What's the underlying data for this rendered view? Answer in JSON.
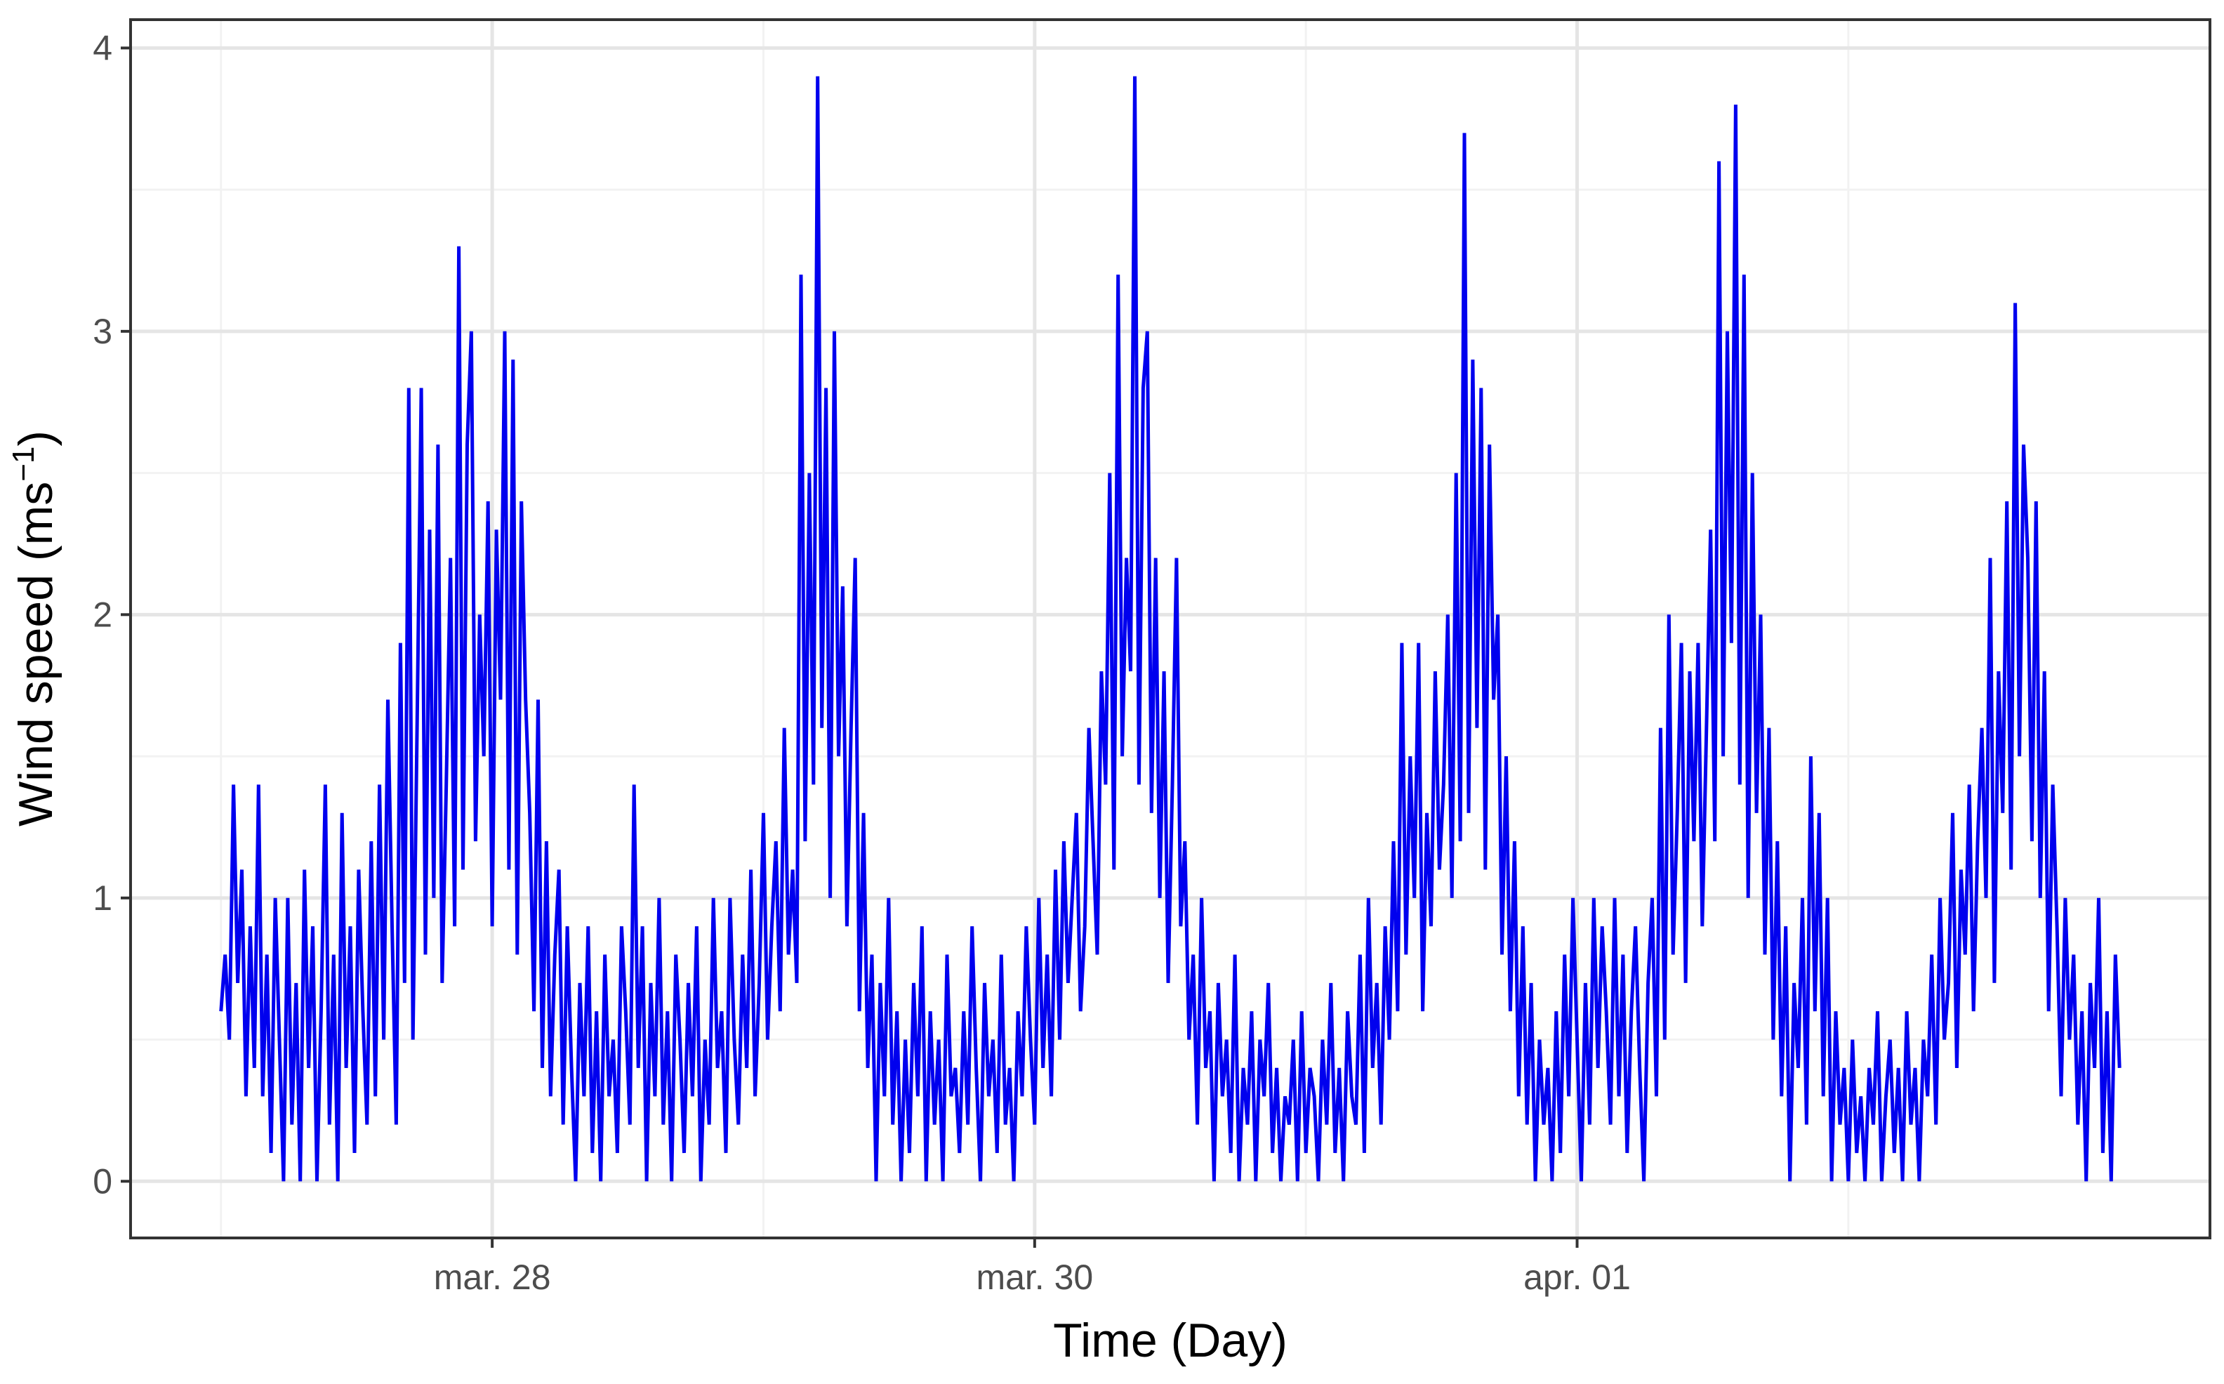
{
  "colors": {
    "series": "#0000ee",
    "grid_major": "#e5e5e5",
    "grid_minor": "#f2f2f2",
    "panel_border": "#333333",
    "tick_text": "#4d4d4d"
  },
  "chart_data": {
    "type": "line",
    "title": "",
    "xlabel": "Time (Day)",
    "ylabel": {
      "main": "Wind speed (ms",
      "sup": "−1",
      "close": ")"
    },
    "x_unit": "day",
    "x_start": "2024-03-27T00:00",
    "x_end": "2024-04-03T00:00",
    "xlim": [
      "2024-03-26T16:00",
      "2024-04-03T08:00"
    ],
    "x_ticks": [
      {
        "at": "2024-03-28T00:00",
        "label": "mar. 28"
      },
      {
        "at": "2024-03-30T00:00",
        "label": "mar. 30"
      },
      {
        "at": "2024-04-01T00:00",
        "label": "apr. 01"
      }
    ],
    "ylim": [
      -0.2,
      4.1
    ],
    "y_ticks": [
      0,
      1,
      2,
      3,
      4
    ],
    "grid": true,
    "legend": "none",
    "series": [
      {
        "daily_peaks": [
          3.3,
          3.9,
          3.9,
          3.7,
          3.8,
          3.1
        ],
        "values": [
          0.6,
          0.8,
          0.5,
          1.4,
          0.7,
          1.1,
          0.3,
          0.9,
          0.4,
          1.4,
          0.3,
          0.8,
          0.1,
          1.0,
          0.5,
          0.0,
          1.0,
          0.2,
          0.7,
          0.0,
          1.1,
          0.4,
          0.9,
          0.0,
          0.6,
          1.4,
          0.2,
          0.8,
          0.0,
          1.3,
          0.4,
          0.9,
          0.1,
          1.1,
          0.6,
          0.2,
          1.2,
          0.3,
          1.4,
          0.5,
          1.7,
          0.9,
          0.2,
          1.9,
          0.7,
          2.8,
          0.5,
          1.6,
          2.8,
          0.8,
          2.3,
          1.0,
          2.6,
          0.7,
          1.4,
          2.2,
          0.9,
          3.3,
          1.1,
          2.6,
          3.0,
          1.2,
          2.0,
          1.5,
          2.4,
          0.9,
          2.3,
          1.7,
          3.0,
          1.1,
          2.9,
          0.8,
          2.4,
          1.7,
          1.3,
          0.6,
          1.7,
          0.4,
          1.2,
          0.3,
          0.8,
          1.1,
          0.2,
          0.9,
          0.4,
          0.0,
          0.7,
          0.3,
          0.9,
          0.1,
          0.6,
          0.0,
          0.8,
          0.3,
          0.5,
          0.1,
          0.9,
          0.6,
          0.2,
          1.4,
          0.4,
          0.9,
          0.0,
          0.7,
          0.3,
          1.0,
          0.2,
          0.6,
          0.0,
          0.8,
          0.5,
          0.1,
          0.7,
          0.3,
          0.9,
          0.0,
          0.5,
          0.2,
          1.0,
          0.4,
          0.6,
          0.1,
          1.0,
          0.5,
          0.2,
          0.8,
          0.4,
          1.1,
          0.3,
          0.7,
          1.3,
          0.5,
          0.9,
          1.2,
          0.6,
          1.6,
          0.8,
          1.1,
          0.7,
          3.2,
          1.2,
          2.5,
          1.4,
          3.9,
          1.6,
          2.8,
          1.0,
          3.0,
          1.5,
          2.1,
          0.9,
          1.6,
          2.2,
          0.6,
          1.3,
          0.4,
          0.8,
          0.0,
          0.7,
          0.3,
          1.0,
          0.2,
          0.6,
          0.0,
          0.5,
          0.1,
          0.7,
          0.3,
          0.9,
          0.0,
          0.6,
          0.2,
          0.5,
          0.0,
          0.8,
          0.3,
          0.4,
          0.1,
          0.6,
          0.2,
          0.9,
          0.4,
          0.0,
          0.7,
          0.3,
          0.5,
          0.1,
          0.8,
          0.2,
          0.4,
          0.0,
          0.6,
          0.3,
          0.9,
          0.5,
          0.2,
          1.0,
          0.4,
          0.8,
          0.3,
          1.1,
          0.5,
          1.2,
          0.7,
          1.0,
          1.3,
          0.6,
          0.9,
          1.6,
          1.2,
          0.8,
          1.8,
          1.4,
          2.5,
          1.1,
          3.2,
          1.5,
          2.2,
          1.8,
          3.9,
          1.4,
          2.8,
          3.0,
          1.3,
          2.2,
          1.0,
          1.8,
          0.7,
          1.4,
          2.2,
          0.9,
          1.2,
          0.5,
          0.8,
          0.2,
          1.0,
          0.4,
          0.6,
          0.0,
          0.7,
          0.3,
          0.5,
          0.1,
          0.8,
          0.0,
          0.4,
          0.2,
          0.6,
          0.0,
          0.5,
          0.3,
          0.7,
          0.1,
          0.4,
          0.0,
          0.3,
          0.2,
          0.5,
          0.0,
          0.6,
          0.1,
          0.4,
          0.3,
          0.0,
          0.5,
          0.2,
          0.7,
          0.1,
          0.4,
          0.0,
          0.6,
          0.3,
          0.2,
          0.8,
          0.1,
          1.0,
          0.4,
          0.7,
          0.2,
          0.9,
          0.5,
          1.2,
          0.6,
          1.9,
          0.8,
          1.5,
          1.0,
          1.9,
          0.6,
          1.3,
          0.9,
          1.8,
          1.1,
          1.4,
          2.0,
          1.0,
          2.5,
          1.2,
          3.7,
          1.3,
          2.9,
          1.6,
          2.8,
          1.1,
          2.6,
          1.7,
          2.0,
          0.8,
          1.5,
          0.6,
          1.2,
          0.3,
          0.9,
          0.2,
          0.7,
          0.0,
          0.5,
          0.2,
          0.4,
          0.0,
          0.6,
          0.1,
          0.8,
          0.3,
          1.0,
          0.5,
          0.0,
          0.7,
          0.2,
          1.0,
          0.4,
          0.9,
          0.6,
          0.2,
          1.0,
          0.3,
          0.8,
          0.1,
          0.6,
          0.9,
          0.4,
          0.0,
          0.7,
          1.0,
          0.3,
          1.6,
          0.5,
          2.0,
          0.8,
          1.3,
          1.9,
          0.7,
          1.8,
          1.2,
          1.9,
          0.9,
          1.6,
          2.3,
          1.2,
          3.6,
          1.5,
          3.0,
          1.9,
          3.8,
          1.4,
          3.2,
          1.0,
          2.5,
          1.3,
          2.0,
          0.8,
          1.6,
          0.5,
          1.2,
          0.3,
          0.9,
          0.0,
          0.7,
          0.4,
          1.0,
          0.2,
          1.5,
          0.6,
          1.3,
          0.3,
          1.0,
          0.0,
          0.6,
          0.2,
          0.4,
          0.0,
          0.5,
          0.1,
          0.3,
          0.0,
          0.4,
          0.2,
          0.6,
          0.0,
          0.3,
          0.5,
          0.1,
          0.4,
          0.0,
          0.6,
          0.2,
          0.4,
          0.0,
          0.5,
          0.3,
          0.8,
          0.2,
          1.0,
          0.5,
          0.7,
          1.3,
          0.4,
          1.1,
          0.8,
          1.4,
          0.6,
          1.2,
          1.6,
          1.0,
          2.2,
          0.7,
          1.8,
          1.3,
          2.4,
          1.1,
          3.1,
          1.5,
          2.6,
          2.2,
          1.2,
          2.4,
          1.0,
          1.8,
          0.6,
          1.4,
          0.9,
          0.3,
          1.0,
          0.5,
          0.8,
          0.2,
          0.6,
          0.0,
          0.7,
          0.4,
          1.0,
          0.1,
          0.6,
          0.0,
          0.8,
          0.4
        ]
      }
    ]
  }
}
